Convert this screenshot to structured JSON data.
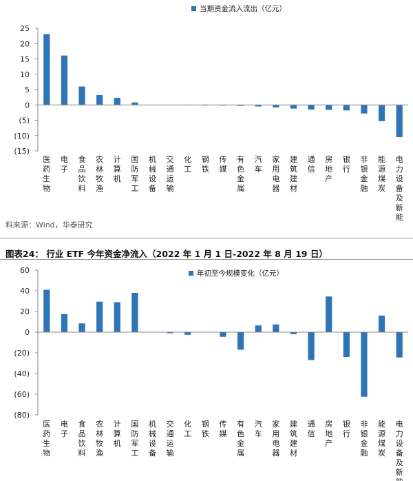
{
  "source_note": "料来源：Wind，华泰研究",
  "figure_title": "图表24：  行业 ETF 今年资金净流入（2022 年 1 月 1 日-2022 年 8 月 19 日）",
  "chart_data": [
    {
      "type": "bar",
      "legend": "当期资金流入流出（亿元）",
      "color": "#2e75b6",
      "ylim": [
        -15,
        25
      ],
      "yticks": [
        25,
        20,
        15,
        10,
        5,
        0,
        -5,
        -10,
        -15
      ],
      "ytick_labels": [
        "25",
        "20",
        "15",
        "10",
        "5",
        "0",
        "(5)",
        "(10)",
        "(15)"
      ],
      "categories": [
        "医药生物",
        "电子",
        "食品饮料",
        "农林牧渔",
        "计算机",
        "国防军工",
        "机械设备",
        "交通运输",
        "化工",
        "钢铁",
        "传媒",
        "有色金属",
        "汽车",
        "家用电器",
        "建筑建材",
        "通信",
        "房地产",
        "银行",
        "非银金融",
        "能源煤炭",
        "电力设备及新能源"
      ],
      "values": [
        23.1,
        16.1,
        6.0,
        3.2,
        2.3,
        0.8,
        0.0,
        0.0,
        -0.1,
        -0.2,
        -0.2,
        -0.3,
        -0.5,
        -0.8,
        -1.2,
        -1.5,
        -1.6,
        -1.8,
        -2.8,
        -5.3,
        -10.5
      ]
    },
    {
      "type": "bar",
      "legend": "年初至今规模变化（亿元）",
      "color": "#2e75b6",
      "ylim": [
        -80,
        60
      ],
      "yticks": [
        60,
        40,
        20,
        0,
        -20,
        -40,
        -60,
        -80
      ],
      "ytick_labels": [
        "60",
        "40",
        "20",
        "0",
        "(20)",
        "(40)",
        "(60)",
        "(80)"
      ],
      "categories": [
        "医药生物",
        "电子",
        "食品饮料",
        "农林牧渔",
        "计算机",
        "国防军工",
        "机械设备",
        "交通运输",
        "化工",
        "钢铁",
        "传媒",
        "有色金属",
        "汽车",
        "家用电器",
        "建筑建材",
        "通信",
        "房地产",
        "银行",
        "非银金融",
        "能源煤炭",
        "电力设备及新能源"
      ],
      "values": [
        41.0,
        17.5,
        8.5,
        29.5,
        29.0,
        38.0,
        0.0,
        -1.0,
        -2.5,
        0.3,
        -4.5,
        -17.0,
        6.5,
        7.5,
        -2.0,
        -27.0,
        34.5,
        -24.0,
        -62.5,
        16.0,
        -24.5
      ]
    }
  ]
}
